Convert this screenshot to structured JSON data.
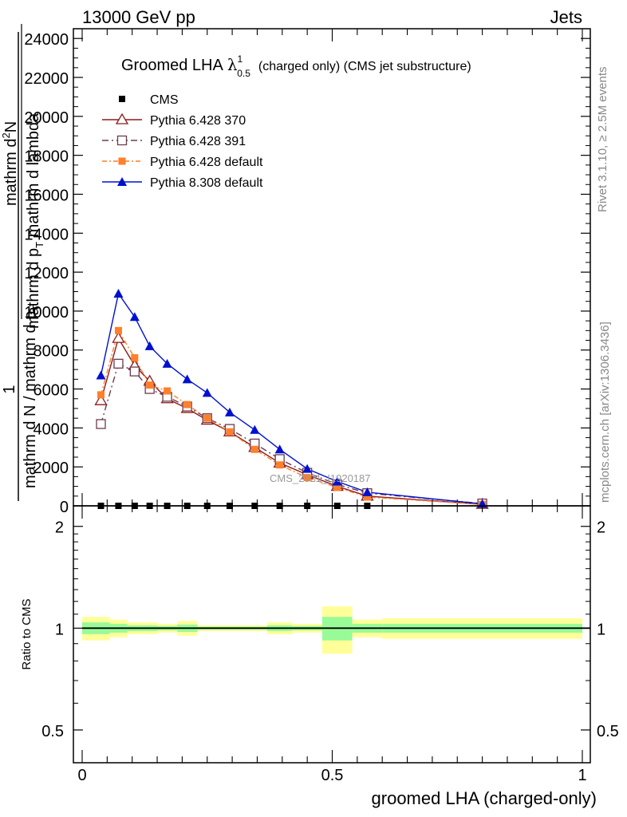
{
  "header": {
    "left": "13000 GeV pp",
    "right": "Jets"
  },
  "side_labels": {
    "rivet": "Rivet 3.1.10, ≥ 2.5M events",
    "mcplots": "mcplots.cern.ch [arXiv:1306.3436]"
  },
  "watermark": "CMS_2021_I1920187",
  "legend_title": {
    "prefix": "Groomed LHA",
    "symbol": "λ",
    "sup": "1",
    "sub": "0.5",
    "suffix": "(charged only) (CMS jet substructure)"
  },
  "upper_ylabel": {
    "line1": "mathrm d",
    "line1_sup": "2",
    "line1_rest": "N",
    "line2": "mathrm d p",
    "line2_sub": "T",
    "line2_rest": " mathrm d lambda",
    "num": "1",
    "den": "mathrm d N / mathrm d p",
    "den_sub": "T"
  },
  "colors": {
    "cms": "#000000",
    "p370": "#8b1a1a",
    "p391": "#6e3a4e",
    "pdef": "#ff7f2a",
    "p8": "#0010d0",
    "band_inner": "#98fb98",
    "band_outer": "#ffff99"
  },
  "chart_data": [
    {
      "type": "line",
      "panel": "main",
      "xlabel": "",
      "ylabel": "",
      "xlim": [
        0,
        1
      ],
      "ylim": [
        0,
        24500
      ],
      "y_ticks": [
        0,
        2000,
        4000,
        6000,
        8000,
        10000,
        12000,
        14000,
        16000,
        18000,
        20000,
        22000,
        24000
      ],
      "y_tick_labels": [
        "0",
        "2000",
        "4000",
        "6000",
        "8000",
        "10000",
        "12000",
        "14000",
        "16000",
        "18000",
        "20000",
        "22000",
        "24000"
      ],
      "x_bin_edges": [
        0.02,
        0.055,
        0.09,
        0.12,
        0.15,
        0.19,
        0.23,
        0.27,
        0.32,
        0.37,
        0.42,
        0.48,
        0.54,
        0.6,
        1.0
      ],
      "series": [
        {
          "name": "CMS",
          "key": "cms",
          "marker": "square",
          "x": [
            0.0375,
            0.0725,
            0.105,
            0.135,
            0.17,
            0.21,
            0.25,
            0.295,
            0.345,
            0.395,
            0.45,
            0.51,
            0.57
          ],
          "values": [
            0,
            0,
            0,
            0,
            0,
            0,
            0,
            0,
            0,
            0,
            0,
            0,
            0
          ]
        },
        {
          "name": "Pythia 6.428 370",
          "key": "p370",
          "marker": "triangle-open",
          "x": [
            0.0375,
            0.0725,
            0.105,
            0.135,
            0.17,
            0.21,
            0.25,
            0.295,
            0.345,
            0.395,
            0.45,
            0.51,
            0.57,
            0.8
          ],
          "values": [
            5400,
            8600,
            7200,
            6400,
            5500,
            5000,
            4400,
            3800,
            3000,
            2200,
            1600,
            1000,
            500,
            80
          ]
        },
        {
          "name": "Pythia 6.428 391",
          "key": "p391",
          "marker": "square-open",
          "x": [
            0.0375,
            0.0725,
            0.105,
            0.135,
            0.17,
            0.21,
            0.25,
            0.295,
            0.345,
            0.395,
            0.45,
            0.51,
            0.57,
            0.8
          ],
          "values": [
            4200,
            7300,
            6900,
            6000,
            5600,
            5100,
            4500,
            3950,
            3200,
            2400,
            1700,
            1100,
            650,
            120
          ]
        },
        {
          "name": "Pythia 6.428 default",
          "key": "pdef",
          "marker": "square-filled",
          "x": [
            0.0375,
            0.0725,
            0.105,
            0.135,
            0.17,
            0.21,
            0.25,
            0.295,
            0.345,
            0.395,
            0.45,
            0.51,
            0.57,
            0.8
          ],
          "values": [
            5700,
            9000,
            7600,
            6200,
            5900,
            5200,
            4500,
            3800,
            2900,
            2100,
            1450,
            950,
            450,
            70
          ]
        },
        {
          "name": "Pythia 8.308 default",
          "key": "p8",
          "marker": "triangle-filled",
          "x": [
            0.0375,
            0.0725,
            0.105,
            0.135,
            0.17,
            0.21,
            0.25,
            0.295,
            0.345,
            0.395,
            0.45,
            0.51,
            0.57,
            0.8
          ],
          "values": [
            6700,
            10900,
            9700,
            8200,
            7300,
            6500,
            5800,
            4800,
            3900,
            2900,
            1900,
            1250,
            700,
            100
          ]
        }
      ]
    },
    {
      "type": "area",
      "panel": "ratio",
      "xlabel": "groomed LHA (charged-only)",
      "ylabel": "Ratio to CMS",
      "xlim": [
        0,
        1
      ],
      "ylim": [
        0.4,
        2.3
      ],
      "log_y": true,
      "y_ticks": [
        0.5,
        1,
        2
      ],
      "y_tick_labels": [
        "0.5",
        "1",
        "2"
      ],
      "x_ticks": [
        0,
        0.5,
        1
      ],
      "x_tick_labels": [
        "0",
        "0.5",
        "1"
      ],
      "reference": 1,
      "band_bins": [
        {
          "x0": 0.0,
          "x1": 0.055,
          "inner": [
            0.96,
            1.04
          ],
          "outer": [
            0.92,
            1.08
          ]
        },
        {
          "x0": 0.055,
          "x1": 0.09,
          "inner": [
            0.97,
            1.03
          ],
          "outer": [
            0.94,
            1.06
          ]
        },
        {
          "x0": 0.09,
          "x1": 0.15,
          "inner": [
            0.98,
            1.02
          ],
          "outer": [
            0.96,
            1.04
          ]
        },
        {
          "x0": 0.15,
          "x1": 0.19,
          "inner": [
            0.985,
            1.015
          ],
          "outer": [
            0.97,
            1.03
          ]
        },
        {
          "x0": 0.19,
          "x1": 0.23,
          "inner": [
            0.975,
            1.025
          ],
          "outer": [
            0.95,
            1.05
          ]
        },
        {
          "x0": 0.23,
          "x1": 0.37,
          "inner": [
            0.99,
            1.01
          ],
          "outer": [
            0.98,
            1.02
          ]
        },
        {
          "x0": 0.37,
          "x1": 0.42,
          "inner": [
            0.98,
            1.02
          ],
          "outer": [
            0.96,
            1.04
          ]
        },
        {
          "x0": 0.42,
          "x1": 0.48,
          "inner": [
            0.985,
            1.015
          ],
          "outer": [
            0.97,
            1.03
          ]
        },
        {
          "x0": 0.48,
          "x1": 0.54,
          "inner": [
            0.92,
            1.08
          ],
          "outer": [
            0.84,
            1.16
          ]
        },
        {
          "x0": 0.54,
          "x1": 0.6,
          "inner": [
            0.97,
            1.03
          ],
          "outer": [
            0.94,
            1.06
          ]
        },
        {
          "x0": 0.6,
          "x1": 1.0,
          "inner": [
            0.97,
            1.03
          ],
          "outer": [
            0.93,
            1.07
          ]
        }
      ]
    }
  ]
}
